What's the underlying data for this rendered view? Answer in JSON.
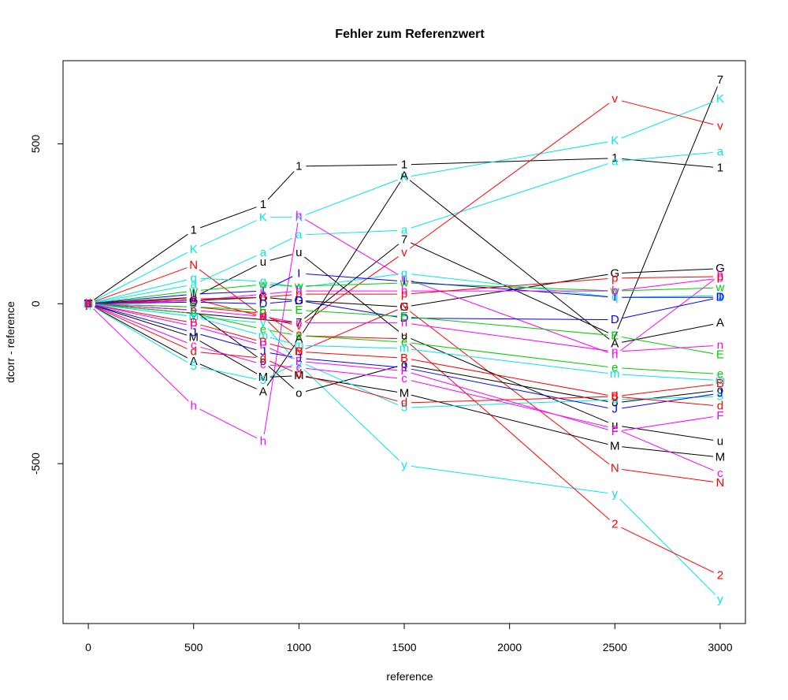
{
  "chart_data": {
    "type": "line",
    "title": "Fehler zum Referenzwert",
    "xlabel": "reference",
    "ylabel": "dcorr - reference",
    "xlim": [
      -120,
      3120
    ],
    "ylim": [
      -1000,
      760
    ],
    "x_ticks": [
      0,
      500,
      1000,
      1500,
      2000,
      2500,
      3000
    ],
    "y_ticks": [
      -500,
      0,
      500
    ],
    "x_tick_labels": [
      "0",
      "500",
      "1000",
      "1500",
      "2000",
      "2500",
      "3000"
    ],
    "y_tick_labels": [
      "-500",
      "0",
      "500"
    ],
    "grid": false,
    "legend": "none",
    "series": [
      {
        "name": "1",
        "color": "#000000",
        "x": [
          0,
          500,
          830,
          1000,
          1500,
          2500,
          3000
        ],
        "y": [
          0,
          230,
          310,
          430,
          435,
          455,
          425
        ]
      },
      {
        "name": "7",
        "color": "#000000",
        "x": [
          0,
          1000,
          1500,
          2500,
          3000
        ],
        "y": [
          0,
          -60,
          200,
          -100,
          700
        ]
      },
      {
        "name": "K",
        "color": "#00e5ee",
        "x": [
          0,
          500,
          830,
          1000,
          1500,
          2500,
          3000
        ],
        "y": [
          0,
          170,
          270,
          270,
          395,
          510,
          640
        ]
      },
      {
        "name": "a",
        "color": "#00e5ee",
        "x": [
          0,
          500,
          830,
          1000,
          1500,
          2500,
          3000
        ],
        "y": [
          0,
          60,
          160,
          215,
          230,
          445,
          475
        ]
      },
      {
        "name": "v",
        "color": "#ff0000",
        "x": [
          0,
          500,
          830,
          1000,
          1500,
          2500,
          3000
        ],
        "y": [
          0,
          15,
          -40,
          -70,
          160,
          640,
          555
        ]
      },
      {
        "name": "G",
        "color": "#000000",
        "x": [
          0,
          500,
          830,
          1000,
          1500,
          2500,
          3000
        ],
        "y": [
          0,
          10,
          20,
          10,
          -10,
          95,
          110
        ]
      },
      {
        "name": "N",
        "color": "#ff0000",
        "x": [
          0,
          500,
          830,
          1000,
          1500,
          2500,
          3000
        ],
        "y": [
          0,
          120,
          -40,
          -150,
          -10,
          -515,
          -560
        ]
      },
      {
        "name": "h",
        "color": "#ff00ff",
        "x": [
          0,
          500,
          830,
          1000,
          1500,
          2500,
          3000
        ],
        "y": [
          0,
          -320,
          -430,
          275,
          80,
          -160,
          90
        ]
      },
      {
        "name": "y",
        "color": "#00e5ee",
        "x": [
          0,
          500,
          830,
          1000,
          1500,
          2500,
          3000
        ],
        "y": [
          0,
          -40,
          -60,
          -190,
          -505,
          -595,
          -925
        ]
      },
      {
        "name": "2",
        "color": "#ff0000",
        "x": [
          0,
          500,
          830,
          1000,
          1500,
          2500,
          3000
        ],
        "y": [
          0,
          -10,
          -30,
          -100,
          -110,
          -690,
          -850
        ]
      },
      {
        "name": "M",
        "color": "#000000",
        "x": [
          0,
          500,
          830,
          1000,
          1500,
          2500,
          3000
        ],
        "y": [
          0,
          -105,
          -230,
          -225,
          -280,
          -445,
          -480
        ]
      },
      {
        "name": "A",
        "color": "#000000",
        "x": [
          0,
          500,
          830,
          1000,
          1500,
          2500,
          3000
        ],
        "y": [
          0,
          -180,
          -275,
          -110,
          400,
          -125,
          -60
        ]
      },
      {
        "name": "u",
        "color": "#000000",
        "x": [
          0,
          500,
          830,
          1000,
          1500,
          2500,
          3000
        ],
        "y": [
          0,
          20,
          130,
          160,
          -100,
          -380,
          -430
        ]
      },
      {
        "name": "o",
        "color": "#000000",
        "x": [
          0,
          500,
          830,
          1000,
          1500,
          2500,
          3000
        ],
        "y": [
          0,
          -20,
          -180,
          -280,
          -190,
          -310,
          -270
        ]
      },
      {
        "name": "5",
        "color": "#00e5ee",
        "x": [
          0,
          500,
          830,
          1000,
          1500,
          2500,
          3000
        ],
        "y": [
          0,
          -195,
          -240,
          -180,
          -325,
          -300,
          -290
        ]
      },
      {
        "name": "q",
        "color": "#00e5ee",
        "x": [
          0,
          500,
          830,
          1000,
          1500,
          2500,
          3000
        ],
        "y": [
          0,
          80,
          70,
          50,
          95,
          20,
          25
        ]
      },
      {
        "name": "w",
        "color": "#00cd00",
        "x": [
          0,
          500,
          830,
          1000,
          1500,
          2500,
          3000
        ],
        "y": [
          0,
          40,
          60,
          55,
          65,
          40,
          50
        ]
      },
      {
        "name": "I",
        "color": "#0000ff",
        "x": [
          0,
          500,
          830,
          1000,
          1500,
          2500,
          3000
        ],
        "y": [
          0,
          30,
          40,
          95,
          70,
          20,
          20
        ]
      },
      {
        "name": "b",
        "color": "#ff00ff",
        "x": [
          0,
          500,
          830,
          1000,
          1500,
          2500,
          3000
        ],
        "y": [
          0,
          10,
          30,
          40,
          40,
          40,
          80
        ]
      },
      {
        "name": "p",
        "color": "#ff0000",
        "x": [
          0,
          500,
          830,
          1000,
          1500,
          2500,
          3000
        ],
        "y": [
          0,
          15,
          20,
          30,
          30,
          80,
          85
        ]
      },
      {
        "name": "D",
        "color": "#0000ff",
        "x": [
          0,
          500,
          830,
          1000,
          1500,
          2500,
          3000
        ],
        "y": [
          0,
          5,
          0,
          10,
          -45,
          -50,
          20
        ]
      },
      {
        "name": "E",
        "color": "#00cd00",
        "x": [
          0,
          500,
          830,
          1000,
          1500,
          2500,
          3000
        ],
        "y": [
          0,
          -10,
          -20,
          -20,
          -40,
          -100,
          -160
        ]
      },
      {
        "name": "n",
        "color": "#ff00ff",
        "x": [
          0,
          500,
          830,
          1000,
          1500,
          2500,
          3000
        ],
        "y": [
          0,
          -20,
          -40,
          -60,
          -60,
          -150,
          -130
        ]
      },
      {
        "name": "e",
        "color": "#00cd00",
        "x": [
          0,
          500,
          830,
          1000,
          1500,
          2500,
          3000
        ],
        "y": [
          0,
          -30,
          -80,
          -100,
          -120,
          -200,
          -220
        ]
      },
      {
        "name": "m",
        "color": "#00e5ee",
        "x": [
          0,
          500,
          830,
          1000,
          1500,
          2500,
          3000
        ],
        "y": [
          0,
          -40,
          -100,
          -130,
          -140,
          -220,
          -240
        ]
      },
      {
        "name": "B",
        "color": "#ff0000",
        "x": [
          0,
          500,
          830,
          1000,
          1500,
          2500,
          3000
        ],
        "y": [
          0,
          -60,
          -120,
          -150,
          -170,
          -290,
          -250
        ]
      },
      {
        "name": "J",
        "color": "#0000ff",
        "x": [
          0,
          500,
          830,
          1000,
          1500,
          2500,
          3000
        ],
        "y": [
          0,
          -90,
          -150,
          -170,
          -200,
          -330,
          -280
        ]
      },
      {
        "name": "F",
        "color": "#ff00ff",
        "x": [
          0,
          500,
          830,
          1000,
          1500,
          2500,
          3000
        ],
        "y": [
          0,
          -70,
          -130,
          -180,
          -210,
          -400,
          -350
        ]
      },
      {
        "name": "c",
        "color": "#ff00ff",
        "x": [
          0,
          500,
          830,
          1000,
          1500,
          2500,
          3000
        ],
        "y": [
          0,
          -130,
          -190,
          -200,
          -235,
          -390,
          -530
        ]
      },
      {
        "name": "d",
        "color": "#ff0000",
        "x": [
          0,
          500,
          830,
          1000,
          1500,
          2500,
          3000
        ],
        "y": [
          0,
          -150,
          -170,
          -220,
          -310,
          -290,
          -320
        ]
      }
    ]
  }
}
